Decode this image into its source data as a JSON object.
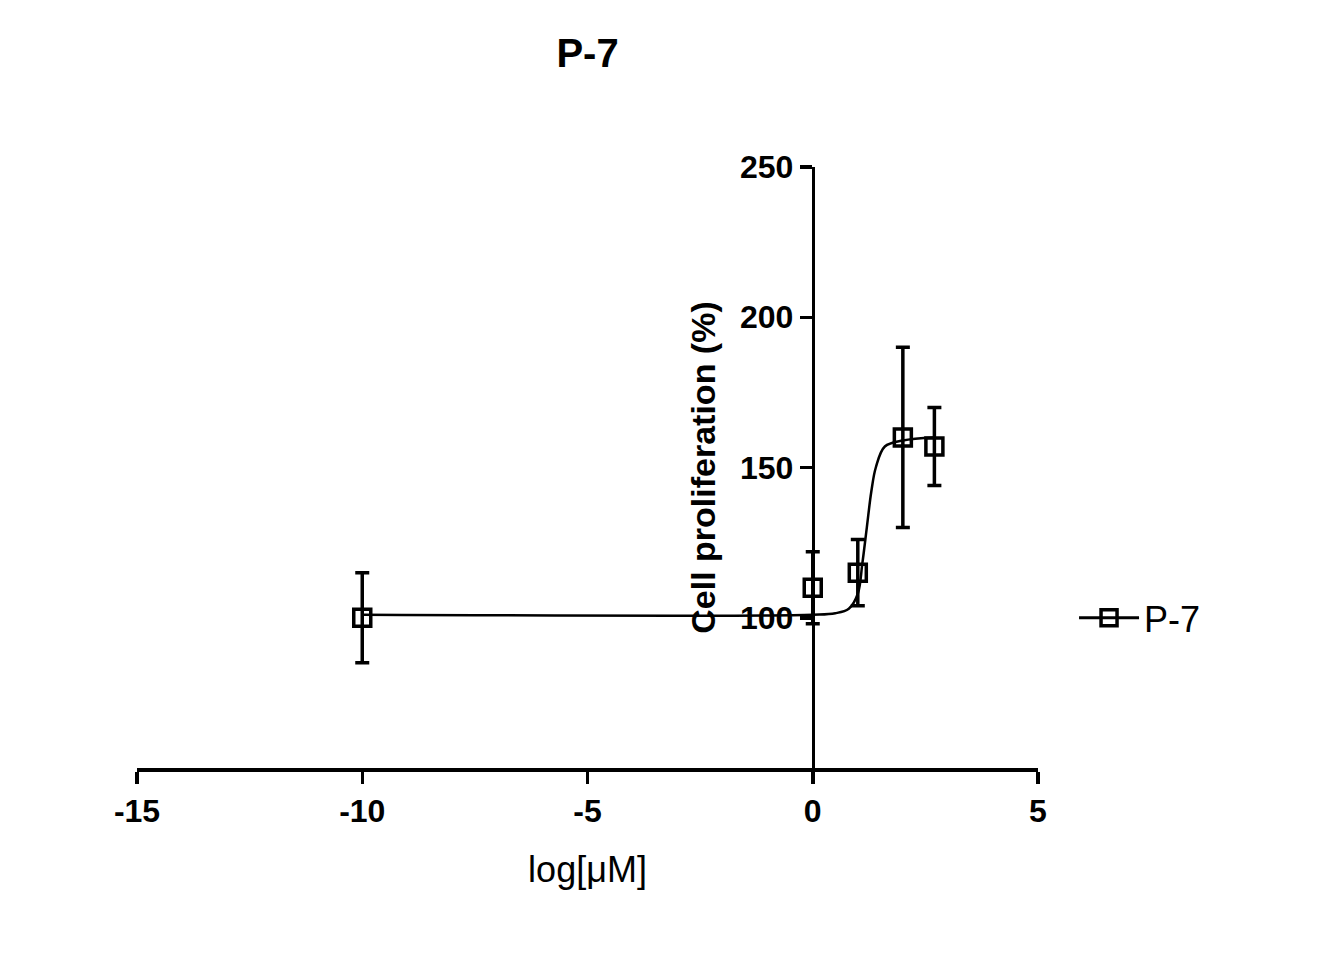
{
  "chart_data": {
    "type": "scatter",
    "title": "P-7",
    "x_label": "log[μM]",
    "y_label": "Cell proliferation (%)",
    "xlim": [
      -15,
      5
    ],
    "xticks": [
      -15,
      -10,
      -5,
      0,
      5
    ],
    "ylim": [
      50,
      250
    ],
    "yticks": [
      100,
      150,
      200,
      250
    ],
    "grid": false,
    "legend": "right",
    "series": [
      {
        "name": "P-7",
        "color": "#000000",
        "marker": "square-open",
        "line_style": "solid",
        "x": [
          -10,
          0,
          1,
          2,
          2.7
        ],
        "values": [
          100,
          110,
          115,
          160,
          157
        ],
        "errors": [
          15,
          12,
          11,
          30,
          13
        ],
        "fit_x": [
          -10,
          0,
          0.5,
          0.8,
          1.0,
          1.1,
          1.2,
          1.3,
          1.4,
          1.6,
          2.0,
          2.7
        ],
        "fit_values": [
          101,
          101,
          101.5,
          103,
          108,
          118,
          130,
          142,
          150,
          157,
          159,
          160
        ]
      }
    ]
  }
}
